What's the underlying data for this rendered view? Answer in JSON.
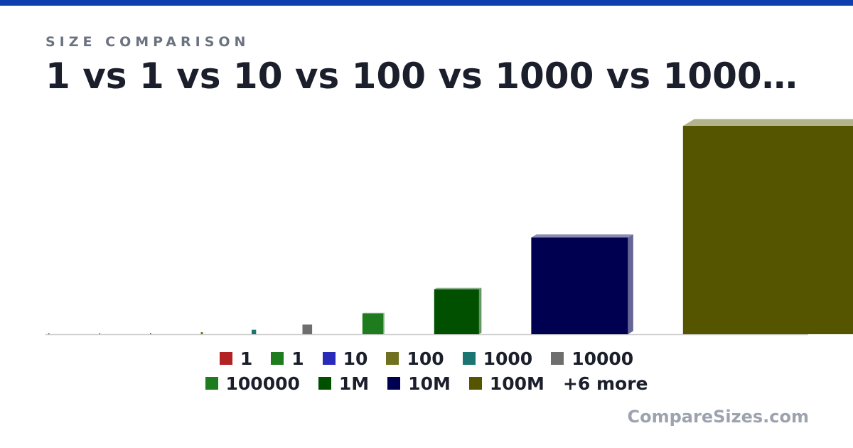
{
  "header": {
    "eyebrow": "SIZE COMPARISON",
    "title": "1 vs 1 vs 10 vs 100 vs 1000 vs 1000…"
  },
  "brand": "CompareSizes.com",
  "colors": {
    "accent": "#0f3fae"
  },
  "legend": {
    "items": [
      {
        "label": "1",
        "color": "#b22222"
      },
      {
        "label": "1",
        "color": "#1e7b1e"
      },
      {
        "label": "10",
        "color": "#2a2ab8"
      },
      {
        "label": "100",
        "color": "#707020"
      },
      {
        "label": "1000",
        "color": "#1a7570"
      },
      {
        "label": "10000",
        "color": "#6e6e6e"
      },
      {
        "label": "100000",
        "color": "#1e7b1e"
      },
      {
        "label": "1M",
        "color": "#005000"
      },
      {
        "label": "10M",
        "color": "#000050"
      },
      {
        "label": "100M",
        "color": "#555500"
      }
    ],
    "more": "+6 more"
  },
  "chart_data": {
    "type": "bar",
    "categories": [
      "1",
      "1",
      "10",
      "100",
      "1000",
      "10000",
      "100000",
      "1M",
      "10M",
      "100M"
    ],
    "values": [
      1,
      1,
      10,
      100,
      1000,
      10000,
      100000,
      1000000,
      10000000,
      100000000
    ],
    "colors": [
      "#b22222",
      "#1e7b1e",
      "#2a2ab8",
      "#707020",
      "#1a7570",
      "#6e6e6e",
      "#1e7b1e",
      "#005000",
      "#000050",
      "#555500"
    ],
    "style": "3d-bars",
    "legend_position": "bottom",
    "grid": false
  }
}
